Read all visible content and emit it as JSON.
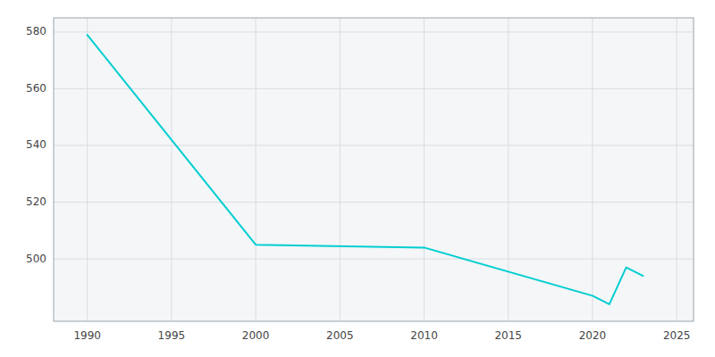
{
  "chart_data": {
    "type": "line",
    "x": [
      1990,
      2000,
      2010,
      2020,
      2021,
      2022,
      2023
    ],
    "values": [
      579,
      505,
      504,
      487,
      484,
      497,
      494
    ],
    "color": "#00CED1",
    "xlim": [
      1988,
      2026
    ],
    "ylim": [
      478,
      585
    ],
    "xticks": [
      1990,
      1995,
      2000,
      2005,
      2010,
      2015,
      2020,
      2025
    ],
    "yticks": [
      500,
      520,
      540,
      560,
      580
    ],
    "grid": true
  }
}
